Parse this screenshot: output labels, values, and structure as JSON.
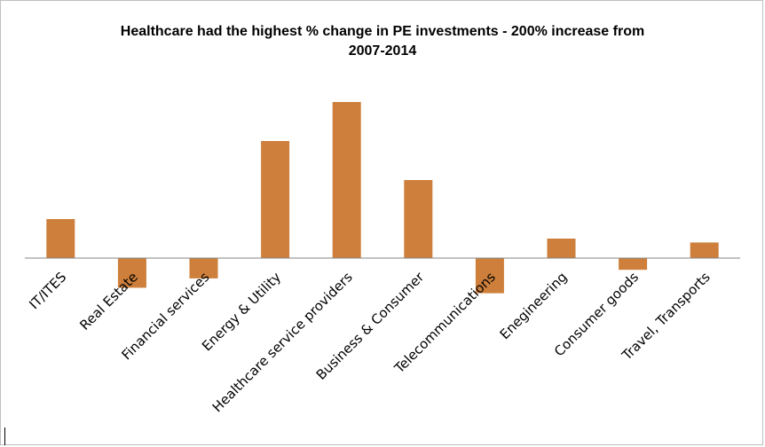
{
  "chart_data": {
    "type": "bar",
    "title_lines": [
      "Healthcare had the highest % change in PE investments - 200% increase from",
      "2007-2014"
    ],
    "categories": [
      "IT/ITES",
      "Real Estate",
      "Financial services",
      "Energy & Utility",
      "Healthcare service providers",
      "Business & Consumer",
      "Telecommunications",
      "Enegineering",
      "Consumer goods",
      "Travel, Transports"
    ],
    "values": [
      50,
      -38,
      -26,
      150,
      200,
      100,
      -45,
      25,
      -15,
      20
    ],
    "ylim": [
      -60,
      200
    ],
    "bar_color": "#cd7f3b",
    "axis_color": "#868686",
    "gridlines": false,
    "legend": "none"
  }
}
